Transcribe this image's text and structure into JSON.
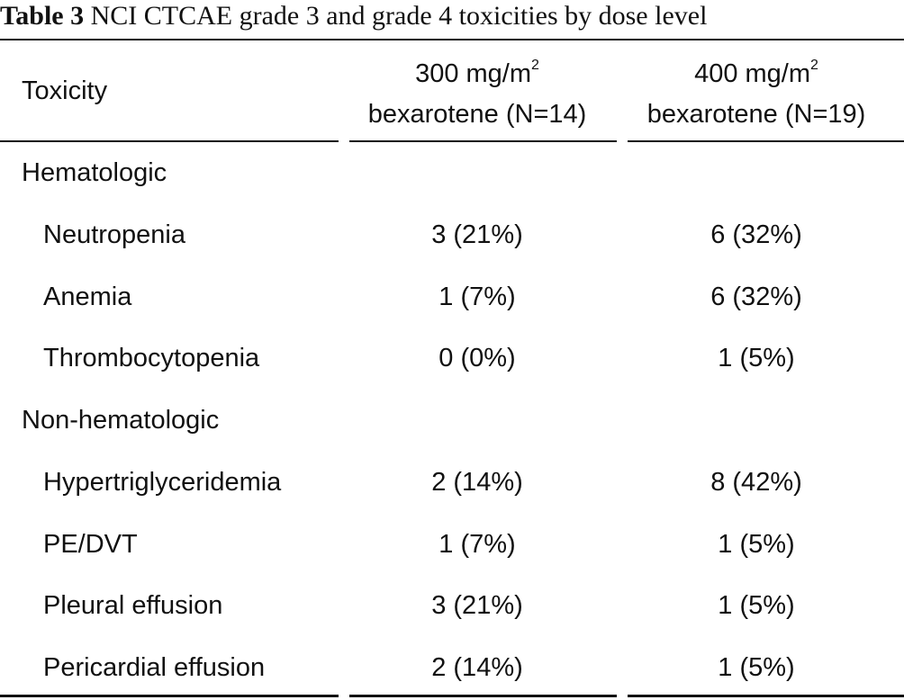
{
  "caption": {
    "label": "Table 3",
    "text": "NCI CTCAE grade 3 and grade 4 toxicities by dose level"
  },
  "header": {
    "toxicity": "Toxicity",
    "col1": {
      "dose": "300 mg/m",
      "sup": "2",
      "drug": "bexarotene (N=14)"
    },
    "col2": {
      "dose": "400 mg/m",
      "sup": "2",
      "drug": "bexarotene (N=19)"
    }
  },
  "groups": [
    {
      "label": "Hematologic",
      "rows": [
        {
          "label": "Neutropenia",
          "v1": "3 (21%)",
          "v2": "6 (32%)"
        },
        {
          "label": "Anemia",
          "v1": "1 (7%)",
          "v2": "6 (32%)"
        },
        {
          "label": "Thrombocytopenia",
          "v1": "0 (0%)",
          "v2": "1 (5%)"
        }
      ]
    },
    {
      "label": "Non-hematologic",
      "rows": [
        {
          "label": "Hypertriglyceridemia",
          "v1": "2 (14%)",
          "v2": "8 (42%)"
        },
        {
          "label": "PE/DVT",
          "v1": "1 (7%)",
          "v2": "1 (5%)"
        },
        {
          "label": "Pleural effusion",
          "v1": "3 (21%)",
          "v2": "1 (5%)"
        },
        {
          "label": "Pericardial effusion",
          "v1": "2 (14%)",
          "v2": "1 (5%)"
        }
      ]
    }
  ]
}
